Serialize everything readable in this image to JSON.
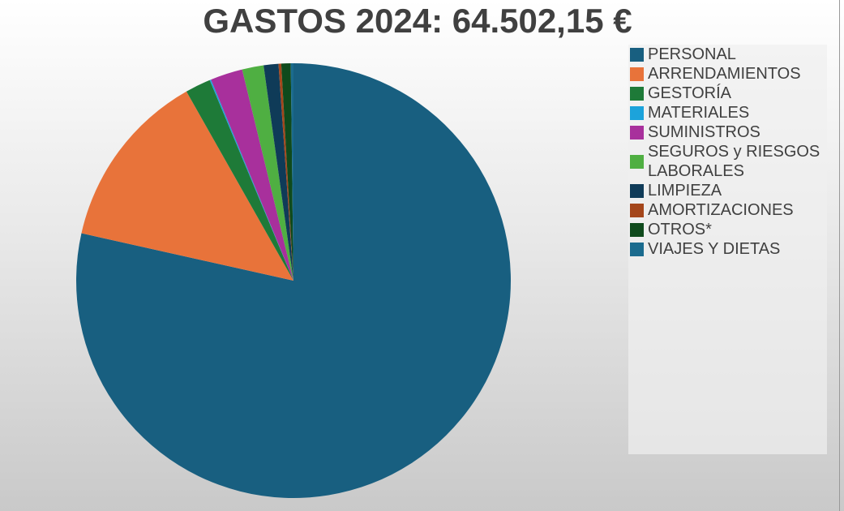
{
  "chart_data": {
    "type": "pie",
    "title": "GASTOS 2024: 64.502,15 €",
    "categories": [
      "PERSONAL",
      "ARRENDAMIENTOS",
      "GESTORÍA",
      "MATERIALES",
      "SUMINISTROS",
      "SEGUROS y RIESGOS LABORALES",
      "LIMPIEZA",
      "AMORTIZACIONES",
      "OTROS*",
      "VIAJES Y DIETAS"
    ],
    "values": [
      78.5,
      13.3,
      1.9,
      0.1,
      2.4,
      1.6,
      1.1,
      0.2,
      0.7,
      0.2
    ],
    "colors": [
      "#185f80",
      "#e8733a",
      "#1e7a38",
      "#1ca3db",
      "#a8309c",
      "#4faf42",
      "#0f3b58",
      "#a4461b",
      "#0f4a1c",
      "#1b6b8e"
    ],
    "legend": "right"
  }
}
